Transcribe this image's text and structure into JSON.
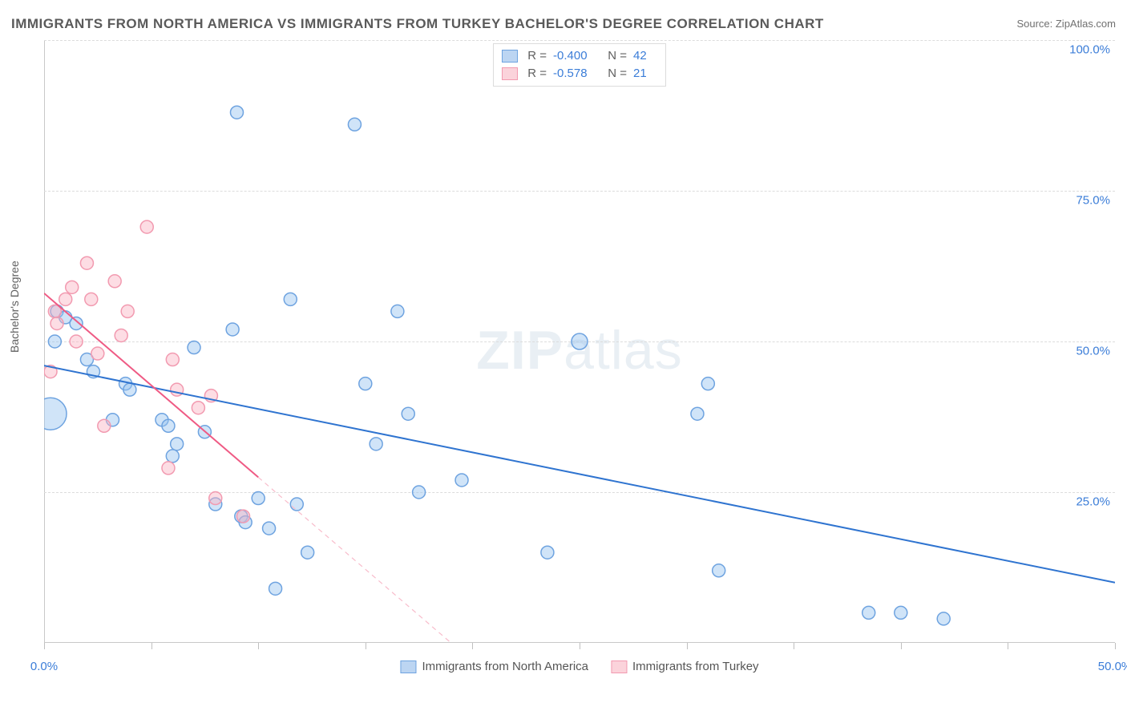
{
  "title": "IMMIGRANTS FROM NORTH AMERICA VS IMMIGRANTS FROM TURKEY BACHELOR'S DEGREE CORRELATION CHART",
  "source_label": "Source: ",
  "source_name": "ZipAtlas.com",
  "y_axis_label": "Bachelor's Degree",
  "watermark": {
    "zip": "ZIP",
    "rest": "atlas"
  },
  "chart": {
    "type": "scatter",
    "xlim": [
      0,
      50
    ],
    "ylim": [
      0,
      100
    ],
    "x_ticks": [
      0,
      5,
      10,
      15,
      20,
      25,
      30,
      35,
      40,
      45,
      50
    ],
    "x_tick_labels": {
      "0": "0.0%",
      "50": "50.0%"
    },
    "y_gridlines": [
      25,
      50,
      75,
      100
    ],
    "y_tick_labels": {
      "25": "25.0%",
      "50": "50.0%",
      "75": "75.0%",
      "100": "100.0%"
    },
    "grid_color": "#dcdcdc",
    "background_color": "#ffffff",
    "axis_color": "#c8c8c8",
    "label_color": "#3b7dd8"
  },
  "legend_top": [
    {
      "swatch_fill": "#bcd5f2",
      "swatch_stroke": "#6ea3e0",
      "r_label": "R =",
      "r": "-0.400",
      "n_label": "N =",
      "n": "42"
    },
    {
      "swatch_fill": "#fbd3db",
      "swatch_stroke": "#f29ab0",
      "r_label": "R =",
      "r": "-0.578",
      "n_label": "N =",
      "n": "21"
    }
  ],
  "legend_bottom": [
    {
      "swatch_fill": "#bcd5f2",
      "swatch_stroke": "#6ea3e0",
      "label": "Immigrants from North America"
    },
    {
      "swatch_fill": "#fbd3db",
      "swatch_stroke": "#f29ab0",
      "label": "Immigrants from Turkey"
    }
  ],
  "series": [
    {
      "name": "north_america",
      "marker_fill": "rgba(150,195,240,0.45)",
      "marker_stroke": "#6ea3e0",
      "marker_stroke_width": 1.5,
      "default_r": 8,
      "trend": {
        "x1": 0,
        "y1": 46,
        "x2": 50,
        "y2": 10,
        "solid_to_x": 50,
        "color": "#2f74d0",
        "width": 2
      },
      "points": [
        {
          "x": 0.3,
          "y": 38,
          "r": 20
        },
        {
          "x": 0.5,
          "y": 50
        },
        {
          "x": 0.6,
          "y": 55
        },
        {
          "x": 1.0,
          "y": 54
        },
        {
          "x": 1.5,
          "y": 53
        },
        {
          "x": 2.0,
          "y": 47
        },
        {
          "x": 2.3,
          "y": 45
        },
        {
          "x": 3.2,
          "y": 37
        },
        {
          "x": 3.8,
          "y": 43
        },
        {
          "x": 4.0,
          "y": 42
        },
        {
          "x": 5.5,
          "y": 37
        },
        {
          "x": 5.8,
          "y": 36
        },
        {
          "x": 6.0,
          "y": 31
        },
        {
          "x": 6.2,
          "y": 33
        },
        {
          "x": 7.0,
          "y": 49
        },
        {
          "x": 7.5,
          "y": 35
        },
        {
          "x": 8.0,
          "y": 23
        },
        {
          "x": 8.8,
          "y": 52
        },
        {
          "x": 9.0,
          "y": 88
        },
        {
          "x": 9.2,
          "y": 21
        },
        {
          "x": 9.4,
          "y": 20
        },
        {
          "x": 10.0,
          "y": 24
        },
        {
          "x": 10.5,
          "y": 19
        },
        {
          "x": 10.8,
          "y": 9
        },
        {
          "x": 11.5,
          "y": 57
        },
        {
          "x": 11.8,
          "y": 23
        },
        {
          "x": 12.3,
          "y": 15
        },
        {
          "x": 14.5,
          "y": 86
        },
        {
          "x": 15.0,
          "y": 43
        },
        {
          "x": 15.5,
          "y": 33
        },
        {
          "x": 16.5,
          "y": 55
        },
        {
          "x": 17.0,
          "y": 38
        },
        {
          "x": 17.5,
          "y": 25
        },
        {
          "x": 19.5,
          "y": 27
        },
        {
          "x": 23.5,
          "y": 15
        },
        {
          "x": 25.0,
          "y": 50,
          "r": 10
        },
        {
          "x": 30.5,
          "y": 38
        },
        {
          "x": 31.0,
          "y": 43
        },
        {
          "x": 31.5,
          "y": 12
        },
        {
          "x": 38.5,
          "y": 5
        },
        {
          "x": 40.0,
          "y": 5
        },
        {
          "x": 42.0,
          "y": 4
        }
      ]
    },
    {
      "name": "turkey",
      "marker_fill": "rgba(250,180,195,0.45)",
      "marker_stroke": "#f29ab0",
      "marker_stroke_width": 1.5,
      "default_r": 8,
      "trend": {
        "x1": 0,
        "y1": 58,
        "x2": 19,
        "y2": 0,
        "solid_to_x": 10,
        "color": "#ef5a84",
        "width": 2,
        "dash_color": "#f8bccb"
      },
      "points": [
        {
          "x": 0.3,
          "y": 45
        },
        {
          "x": 0.5,
          "y": 55
        },
        {
          "x": 0.6,
          "y": 53
        },
        {
          "x": 1.0,
          "y": 57
        },
        {
          "x": 1.3,
          "y": 59
        },
        {
          "x": 1.5,
          "y": 50
        },
        {
          "x": 2.0,
          "y": 63
        },
        {
          "x": 2.2,
          "y": 57
        },
        {
          "x": 2.5,
          "y": 48
        },
        {
          "x": 2.8,
          "y": 36
        },
        {
          "x": 3.3,
          "y": 60
        },
        {
          "x": 3.6,
          "y": 51
        },
        {
          "x": 3.9,
          "y": 55
        },
        {
          "x": 4.8,
          "y": 69
        },
        {
          "x": 5.8,
          "y": 29
        },
        {
          "x": 6.0,
          "y": 47
        },
        {
          "x": 6.2,
          "y": 42
        },
        {
          "x": 7.2,
          "y": 39
        },
        {
          "x": 7.8,
          "y": 41
        },
        {
          "x": 8.0,
          "y": 24
        },
        {
          "x": 9.3,
          "y": 21
        }
      ]
    }
  ]
}
